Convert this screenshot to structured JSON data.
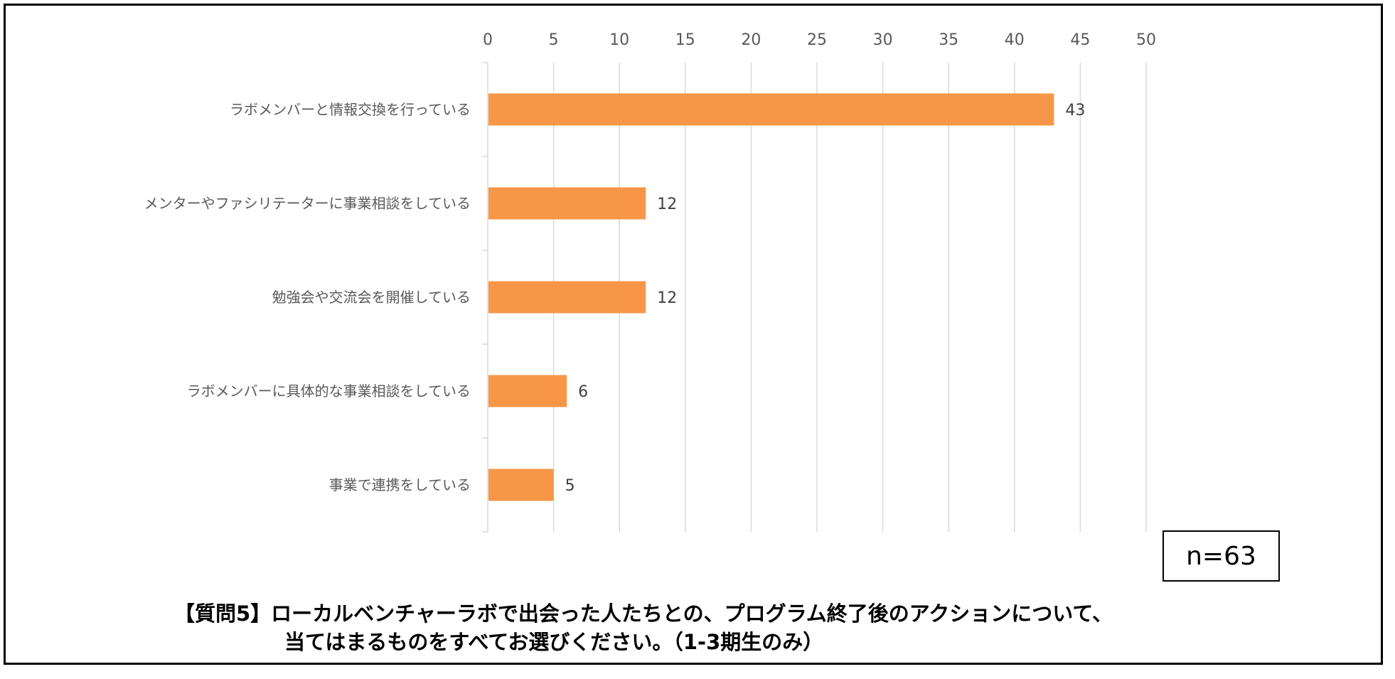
{
  "chart_data": {
    "type": "bar",
    "orientation": "horizontal",
    "categories": [
      "ラボメンバーと情報交換を行っている",
      "メンターやファシリテーターに事業相談をしている",
      "勉強会や交流会を開催している",
      "ラボメンバーに具体的な事業相談をしている",
      "事業で連携をしている"
    ],
    "values": [
      43,
      12,
      12,
      6,
      5
    ],
    "xlim": [
      0,
      50
    ],
    "xticks": [
      0,
      5,
      10,
      15,
      20,
      25,
      30,
      35,
      40,
      45,
      50
    ],
    "axis_position": "top",
    "grid": true,
    "bar_color": "#F79646",
    "title_lines": [
      "【質問5】ローカルベンチャーラボで出会った人たちとの、プログラム終了後のアクションについて、",
      "当てはまるものをすべてお選びください。（1-3期生のみ）"
    ],
    "sample_size": "n=63"
  }
}
